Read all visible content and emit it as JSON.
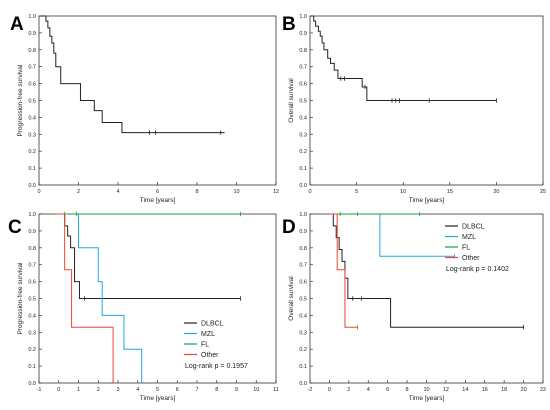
{
  "chart_data": [
    {
      "panel_label": "A",
      "type": "line",
      "step": true,
      "ylabel": "Progression-free survival",
      "xlabel": "Time [years]",
      "xlim": [
        0,
        12
      ],
      "ylim": [
        0,
        1
      ],
      "xticks": [
        "0",
        "2",
        "4",
        "6",
        "8",
        "10",
        "12"
      ],
      "yticks": [
        "0.0",
        "0.1",
        "0.2",
        "0.3",
        "0.4",
        "0.5",
        "0.6",
        "0.7",
        "0.8",
        "0.9",
        "1.0"
      ],
      "legend": [],
      "annotation": "",
      "series": [
        {
          "color": "#222222",
          "points": [
            [
              0,
              1
            ],
            [
              0.35,
              1
            ],
            [
              0.35,
              0.97
            ],
            [
              0.45,
              0.97
            ],
            [
              0.45,
              0.93
            ],
            [
              0.55,
              0.93
            ],
            [
              0.55,
              0.88
            ],
            [
              0.65,
              0.88
            ],
            [
              0.65,
              0.84
            ],
            [
              0.75,
              0.84
            ],
            [
              0.75,
              0.78
            ],
            [
              0.85,
              0.78
            ],
            [
              0.85,
              0.7
            ],
            [
              1.1,
              0.7
            ],
            [
              1.1,
              0.6
            ],
            [
              2.1,
              0.6
            ],
            [
              2.1,
              0.5
            ],
            [
              2.8,
              0.5
            ],
            [
              2.8,
              0.44
            ],
            [
              3.2,
              0.44
            ],
            [
              3.2,
              0.37
            ],
            [
              4.2,
              0.37
            ],
            [
              4.2,
              0.31
            ],
            [
              9.4,
              0.31
            ]
          ],
          "censors": [
            [
              5.6,
              0.31
            ],
            [
              5.9,
              0.31
            ],
            [
              9.2,
              0.31
            ]
          ]
        }
      ]
    },
    {
      "panel_label": "B",
      "type": "line",
      "step": true,
      "ylabel": "Overall survival",
      "xlabel": "Time [years]",
      "xlim": [
        0,
        25
      ],
      "ylim": [
        0,
        1
      ],
      "xticks": [
        "0",
        "5",
        "10",
        "15",
        "20",
        "25"
      ],
      "yticks": [
        "0.0",
        "0.1",
        "0.2",
        "0.3",
        "0.4",
        "0.5",
        "0.6",
        "0.7",
        "0.8",
        "0.9",
        "1.0"
      ],
      "legend": [],
      "annotation": "",
      "series": [
        {
          "color": "#222222",
          "points": [
            [
              0,
              1
            ],
            [
              0.4,
              1
            ],
            [
              0.4,
              0.97
            ],
            [
              0.6,
              0.97
            ],
            [
              0.6,
              0.94
            ],
            [
              0.9,
              0.94
            ],
            [
              0.9,
              0.91
            ],
            [
              1.1,
              0.91
            ],
            [
              1.1,
              0.88
            ],
            [
              1.3,
              0.88
            ],
            [
              1.3,
              0.84
            ],
            [
              1.5,
              0.84
            ],
            [
              1.5,
              0.8
            ],
            [
              1.9,
              0.8
            ],
            [
              1.9,
              0.75
            ],
            [
              2.2,
              0.75
            ],
            [
              2.2,
              0.72
            ],
            [
              2.6,
              0.72
            ],
            [
              2.6,
              0.68
            ],
            [
              3,
              0.68
            ],
            [
              3,
              0.63
            ],
            [
              5.6,
              0.63
            ],
            [
              5.6,
              0.58
            ],
            [
              6.1,
              0.58
            ],
            [
              6.1,
              0.5
            ],
            [
              20,
              0.5
            ]
          ],
          "censors": [
            [
              3.3,
              0.63
            ],
            [
              3.7,
              0.63
            ],
            [
              5.9,
              0.58
            ],
            [
              8.8,
              0.5
            ],
            [
              9.2,
              0.5
            ],
            [
              9.6,
              0.5
            ],
            [
              12.8,
              0.5
            ],
            [
              20,
              0.5
            ]
          ]
        }
      ]
    },
    {
      "panel_label": "C",
      "type": "line",
      "step": true,
      "ylabel": "Progression-free survival",
      "xlabel": "Time [years]",
      "xlim": [
        -1,
        11
      ],
      "ylim": [
        0,
        1
      ],
      "xticks": [
        "-1",
        "0",
        "1",
        "2",
        "3",
        "4",
        "5",
        "6",
        "7",
        "8",
        "9",
        "10",
        "11"
      ],
      "yticks": [
        "0.0",
        "0.1",
        "0.2",
        "0.3",
        "0.4",
        "0.5",
        "0.6",
        "0.7",
        "0.8",
        "0.9",
        "1.0"
      ],
      "legend": [
        {
          "label": "DLBCL",
          "color": "#222222"
        },
        {
          "label": "MZL",
          "color": "#1ea7e0"
        },
        {
          "label": "FL",
          "color": "#1a9e4a"
        },
        {
          "label": "Other",
          "color": "#ee4433"
        }
      ],
      "annotation": "Log-rank p = 0.1957",
      "series": [
        {
          "name": "DLBCL",
          "color": "#222222",
          "points": [
            [
              0,
              1
            ],
            [
              0.3,
              1
            ],
            [
              0.3,
              0.93
            ],
            [
              0.45,
              0.93
            ],
            [
              0.45,
              0.87
            ],
            [
              0.6,
              0.87
            ],
            [
              0.6,
              0.8
            ],
            [
              0.8,
              0.8
            ],
            [
              0.8,
              0.6
            ],
            [
              1.05,
              0.6
            ],
            [
              1.05,
              0.5
            ],
            [
              9.2,
              0.5
            ]
          ],
          "censors": [
            [
              1.3,
              0.5
            ],
            [
              9.2,
              0.5
            ]
          ]
        },
        {
          "name": "MZL",
          "color": "#1ea7e0",
          "points": [
            [
              0,
              1
            ],
            [
              1,
              1
            ],
            [
              1,
              0.8
            ],
            [
              2,
              0.8
            ],
            [
              2,
              0.6
            ],
            [
              2.2,
              0.6
            ],
            [
              2.2,
              0.4
            ],
            [
              3.3,
              0.4
            ],
            [
              3.3,
              0.2
            ],
            [
              4.2,
              0.2
            ],
            [
              4.2,
              0
            ]
          ],
          "censors": []
        },
        {
          "name": "FL",
          "color": "#1a9e4a",
          "points": [
            [
              0,
              1
            ],
            [
              9.2,
              1
            ]
          ],
          "censors": [
            [
              0.3,
              1
            ],
            [
              0.9,
              1
            ],
            [
              9.2,
              1
            ]
          ]
        },
        {
          "name": "Other",
          "color": "#ee4433",
          "points": [
            [
              -0.1,
              1
            ],
            [
              0.3,
              1
            ],
            [
              0.3,
              0.67
            ],
            [
              0.65,
              0.67
            ],
            [
              0.65,
              0.33
            ],
            [
              2.75,
              0.33
            ],
            [
              2.75,
              0
            ]
          ],
          "censors": []
        }
      ]
    },
    {
      "panel_label": "D",
      "type": "line",
      "step": true,
      "ylabel": "Overall survival",
      "xlabel": "Time [years]",
      "xlim": [
        -2,
        22
      ],
      "ylim": [
        0,
        1
      ],
      "xticks": [
        "-2",
        "0",
        "2",
        "4",
        "6",
        "8",
        "10",
        "12",
        "14",
        "16",
        "18",
        "20",
        "22"
      ],
      "yticks": [
        "0.0",
        "0.1",
        "0.2",
        "0.3",
        "0.4",
        "0.5",
        "0.6",
        "0.7",
        "0.8",
        "0.9",
        "1.0"
      ],
      "legend": [
        {
          "label": "DLBCL",
          "color": "#222222"
        },
        {
          "label": "MZL",
          "color": "#1ea7e0"
        },
        {
          "label": "FL",
          "color": "#1a9e4a"
        },
        {
          "label": "Other",
          "color": "#ee4433"
        }
      ],
      "annotation": "Log-rank p = 0.1402",
      "series": [
        {
          "name": "DLBCL",
          "color": "#222222",
          "points": [
            [
              0,
              1
            ],
            [
              0.4,
              1
            ],
            [
              0.4,
              0.93
            ],
            [
              0.7,
              0.93
            ],
            [
              0.7,
              0.86
            ],
            [
              1.0,
              0.86
            ],
            [
              1.0,
              0.79
            ],
            [
              1.3,
              0.79
            ],
            [
              1.3,
              0.72
            ],
            [
              1.6,
              0.72
            ],
            [
              1.6,
              0.62
            ],
            [
              1.9,
              0.62
            ],
            [
              1.9,
              0.5
            ],
            [
              6.3,
              0.5
            ],
            [
              6.3,
              0.33
            ],
            [
              20,
              0.33
            ]
          ],
          "censors": [
            [
              2.4,
              0.5
            ],
            [
              3.3,
              0.5
            ],
            [
              20,
              0.33
            ]
          ]
        },
        {
          "name": "MZL",
          "color": "#1ea7e0",
          "points": [
            [
              0,
              1
            ],
            [
              5.2,
              1
            ],
            [
              5.2,
              0.75
            ],
            [
              12.9,
              0.75
            ]
          ],
          "censors": [
            [
              12.9,
              0.75
            ]
          ]
        },
        {
          "name": "FL",
          "color": "#1a9e4a",
          "points": [
            [
              0,
              1
            ],
            [
              9.3,
              1
            ]
          ],
          "censors": [
            [
              1.1,
              1
            ],
            [
              2.9,
              1
            ],
            [
              9.3,
              1
            ]
          ]
        },
        {
          "name": "Other",
          "color": "#ee4433",
          "points": [
            [
              0,
              1
            ],
            [
              0.8,
              1
            ],
            [
              0.8,
              0.67
            ],
            [
              1.6,
              0.67
            ],
            [
              1.6,
              0.33
            ],
            [
              2.9,
              0.33
            ]
          ],
          "censors": [
            [
              2.9,
              0.33
            ]
          ]
        }
      ]
    }
  ]
}
